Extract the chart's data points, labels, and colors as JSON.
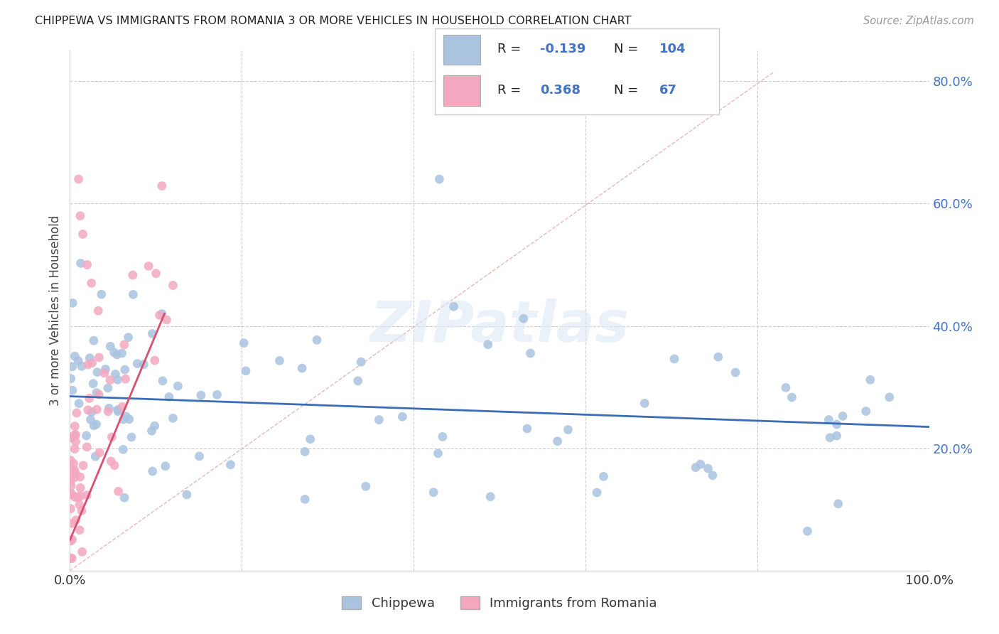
{
  "title": "CHIPPEWA VS IMMIGRANTS FROM ROMANIA 3 OR MORE VEHICLES IN HOUSEHOLD CORRELATION CHART",
  "source": "Source: ZipAtlas.com",
  "ylabel": "3 or more Vehicles in Household",
  "chippewa_R": -0.139,
  "chippewa_N": 104,
  "romania_R": 0.368,
  "romania_N": 67,
  "chippewa_color": "#aac4e0",
  "romania_color": "#f4a8c0",
  "chippewa_line_color": "#3a6db5",
  "romania_line_color": "#d94f6e",
  "diagonal_color": "#e8b0b8",
  "background_color": "#ffffff",
  "xmin": 0,
  "xmax": 100,
  "ymin": 0,
  "ymax": 85,
  "yticks": [
    20,
    40,
    60,
    80
  ],
  "ytick_labels": [
    "20.0%",
    "40.0%",
    "60.0%",
    "80.0%"
  ],
  "xtick_labels": [
    "0.0%",
    "100.0%"
  ],
  "watermark": "ZIPatlas",
  "legend_label_1": "Chippewa",
  "legend_label_2": "Immigrants from Romania"
}
